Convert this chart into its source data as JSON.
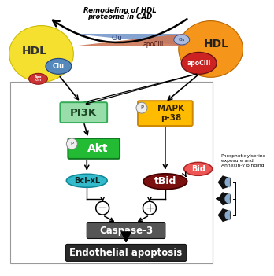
{
  "fig_width": 3.48,
  "fig_height": 3.51,
  "dpi": 100,
  "title_line1": "Remodeling of HDL",
  "title_line2": "proteome in CAD",
  "bottom_label": "Endothelial apoptosis",
  "caspase_label": "Caspase-3",
  "pi3k_label": "PI3K",
  "akt_label": "Akt",
  "bcl_label": "Bcl-xL",
  "mapk_label": "MAPK\np-38",
  "tbid_label": "tBid",
  "bid_label": "Bid",
  "phospho_label": "Phosphotidylserine\nexposure and\nAnnexin-V binding",
  "hdl_left_color": "#f5e030",
  "hdl_right_color": "#f5961a",
  "clu_left_color": "#5588bb",
  "apociii_left_color": "#cc3333",
  "apociii_right_color": "#cc2222",
  "pi3k_color": "#99ddaa",
  "pi3k_border": "#33aa55",
  "akt_color": "#22bb33",
  "akt_border": "#117722",
  "bcl_color": "#33bbcc",
  "bcl_border": "#118899",
  "mapk_color": "#ffbb00",
  "mapk_border": "#cc8800",
  "tbid_color": "#7a1010",
  "bid_color": "#ee5555",
  "caspase_color": "#555555",
  "bottom_color": "#2a2a2a",
  "wedge_blue": "#88aacc",
  "tri_blue": "#7799cc",
  "tri_red": "#cc7755"
}
